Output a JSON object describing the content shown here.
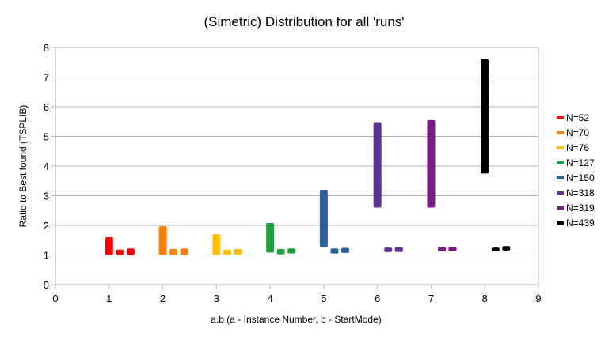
{
  "chart_data": {
    "type": "scatter",
    "title": "(Simetric) Distribution for all 'runs'",
    "xlabel": "a.b (a - Instance Number, b - StartMode)",
    "ylabel": "Ratio to Best found (TSPLIB)",
    "xlim": [
      0,
      9
    ],
    "ylim": [
      0,
      8
    ],
    "xticks": [
      "0",
      "1",
      "2",
      "3",
      "4",
      "5",
      "6",
      "7",
      "8",
      "9"
    ],
    "yticks": [
      "0",
      "1",
      "2",
      "3",
      "4",
      "5",
      "6",
      "7",
      "8"
    ],
    "grid": "horizontal",
    "legend_position": "right",
    "series": [
      {
        "name": "N=52",
        "color": "#ff0000",
        "groups": [
          {
            "x": 1.0,
            "ymin": 1.0,
            "ymax": 1.6
          },
          {
            "x": 1.2,
            "ymin": 1.0,
            "ymax": 1.18
          },
          {
            "x": 1.4,
            "ymin": 1.0,
            "ymax": 1.22
          }
        ]
      },
      {
        "name": "N=70",
        "color": "#ff8000",
        "groups": [
          {
            "x": 2.0,
            "ymin": 1.0,
            "ymax": 1.97
          },
          {
            "x": 2.2,
            "ymin": 1.0,
            "ymax": 1.2
          },
          {
            "x": 2.4,
            "ymin": 1.0,
            "ymax": 1.22
          }
        ]
      },
      {
        "name": "N=76",
        "color": "#ffc000",
        "groups": [
          {
            "x": 3.0,
            "ymin": 1.0,
            "ymax": 1.7
          },
          {
            "x": 3.2,
            "ymin": 1.0,
            "ymax": 1.18
          },
          {
            "x": 3.4,
            "ymin": 1.0,
            "ymax": 1.2
          }
        ]
      },
      {
        "name": "N=127",
        "color": "#1aa33a",
        "groups": [
          {
            "x": 4.0,
            "ymin": 1.08,
            "ymax": 2.08
          },
          {
            "x": 4.2,
            "ymin": 1.02,
            "ymax": 1.2
          },
          {
            "x": 4.4,
            "ymin": 1.05,
            "ymax": 1.22
          }
        ]
      },
      {
        "name": "N=150",
        "color": "#2a5fa0",
        "groups": [
          {
            "x": 5.0,
            "ymin": 1.27,
            "ymax": 3.2
          },
          {
            "x": 5.2,
            "ymin": 1.05,
            "ymax": 1.22
          },
          {
            "x": 5.4,
            "ymin": 1.07,
            "ymax": 1.24
          }
        ]
      },
      {
        "name": "N=318",
        "color": "#5b3297",
        "groups": [
          {
            "x": 6.0,
            "ymin": 2.6,
            "ymax": 5.48
          },
          {
            "x": 6.2,
            "ymin": 1.1,
            "ymax": 1.25
          },
          {
            "x": 6.4,
            "ymin": 1.1,
            "ymax": 1.27
          }
        ]
      },
      {
        "name": "N=319",
        "color": "#7a1a85",
        "groups": [
          {
            "x": 7.0,
            "ymin": 2.6,
            "ymax": 5.55
          },
          {
            "x": 7.2,
            "ymin": 1.12,
            "ymax": 1.27
          },
          {
            "x": 7.4,
            "ymin": 1.12,
            "ymax": 1.28
          }
        ]
      },
      {
        "name": "N=439",
        "color": "#000000",
        "groups": [
          {
            "x": 8.0,
            "ymin": 3.75,
            "ymax": 7.6
          },
          {
            "x": 8.2,
            "ymin": 1.12,
            "ymax": 1.25
          },
          {
            "x": 8.4,
            "ymin": 1.15,
            "ymax": 1.3
          }
        ]
      }
    ]
  }
}
